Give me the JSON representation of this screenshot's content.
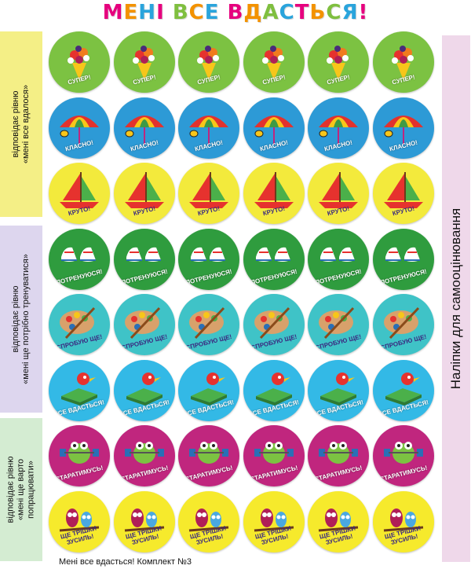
{
  "title": {
    "text": "МЕНІ ВСЕ ВДАСТЬСЯ!",
    "letter_colors": [
      "#e6007e",
      "#f39200",
      "#2aa4dc",
      "#e6007e",
      "#7fbf3f",
      "#f39200",
      "#2aa4dc",
      "#e6007e",
      "#f39200",
      "#7fbf3f",
      "#2aa4dc",
      "#e6007e",
      "#f39200",
      "#7fbf3f",
      "#2aa4dc",
      "#e6007e",
      "#f39200",
      "#7fbf3f"
    ]
  },
  "side_labels": [
    {
      "text": "відповідає рівню\n«мені все вдалося»"
    },
    {
      "text": "відповідає рівню\n«мені ще потрібно тренуватися»"
    },
    {
      "text": "відповідає рівню\n«мені ще варто\nпопрацювати»"
    }
  ],
  "right_label": "Наліпки для самооцінювання",
  "sticker_rows": [
    {
      "caption": "СУПЕР!",
      "color": "#7cc242",
      "icon": "flower-bouquet-icon",
      "text_color": "light"
    },
    {
      "caption": "КЛАСНО!",
      "color": "#2d9ad6",
      "icon": "umbrella-bee-icon",
      "text_color": "light"
    },
    {
      "caption": "КРУТО!",
      "color": "#f3ea3c",
      "icon": "sailboat-icon",
      "text_color": "dark"
    },
    {
      "caption": "ПОТРЕНУЮСЯ!",
      "color": "#2f9c3e",
      "icon": "sneakers-icon",
      "text_color": "light"
    },
    {
      "caption": "СПРОБУЮ ЩЕ!",
      "color": "#3fc3c7",
      "icon": "paint-palette-icon",
      "text_color": "dark"
    },
    {
      "caption": "УСЕ ВДАСТЬСЯ!",
      "color": "#33b9e6",
      "icon": "bird-book-icon",
      "text_color": "light"
    },
    {
      "caption": "СТАРАТИМУСЬ!",
      "color": "#c0267e",
      "icon": "frog-dumbbells-icon",
      "text_color": "light"
    },
    {
      "caption": "ЩЕ ТРІШКИ ЗУСИЛЬ!",
      "color": "#f6ea2c",
      "icon": "owls-branch-icon",
      "text_color": "dark"
    }
  ],
  "columns_count": 6,
  "footer": "Мені все вдасться! Комплект №3"
}
